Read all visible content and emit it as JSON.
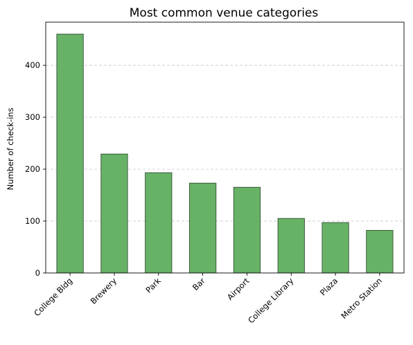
{
  "chart_data": {
    "type": "bar",
    "title": "Most common venue categories",
    "xlabel": "",
    "ylabel": "Number of check-ins",
    "categories": [
      "College Bldg",
      "Brewery",
      "Park",
      "Bar",
      "Airport",
      "College Library",
      "Plaza",
      "Metro Station"
    ],
    "values": [
      460,
      229,
      193,
      173,
      165,
      105,
      97,
      82
    ],
    "ylim": [
      0,
      483
    ],
    "yticks": [
      0,
      100,
      200,
      300,
      400
    ],
    "grid": "y-dashed",
    "colors": {
      "bar_fill": "#67b267",
      "bar_edge": "#3d5a3d",
      "grid": "#c8c8c8",
      "axis": "#000000"
    }
  }
}
